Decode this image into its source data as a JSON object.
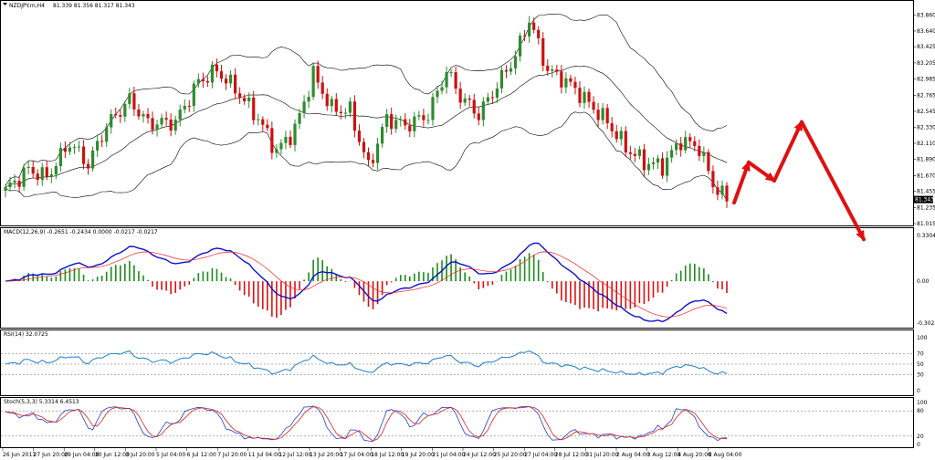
{
  "header": {
    "symbol": "NZDJPY.m,H4",
    "ohlc": "81.339 81.356 81.317 81.343"
  },
  "colors": {
    "bull": "#2e8b2e",
    "bear": "#cc1010",
    "band": "#000000",
    "macd_line": "#1010cc",
    "signal_line": "#ff2020",
    "hist_pos": "#1a8c1a",
    "hist_neg": "#dd1010",
    "rsi": "#1e7fd0",
    "stoch_main": "#2040d0",
    "stoch_signal": "#e02020",
    "arrow": "#e01010"
  },
  "price_panel": {
    "ylim": [
      81.015,
      84.0
    ],
    "ticks": [
      "83.860",
      "83.640",
      "83.425",
      "83.205",
      "82.985",
      "82.765",
      "82.545",
      "82.330",
      "82.110",
      "81.890",
      "81.670",
      "81.455",
      "81.235",
      "81.015"
    ],
    "last_price": "81.343"
  },
  "macd_panel": {
    "title": "MACD(12,26,9) -0.2651 -0.2434 0.0000 -0.0217 -0.0217",
    "ticks": [
      "0.3304",
      "0.00",
      "-0.3023"
    ],
    "ylim": [
      -0.3023,
      0.3304
    ]
  },
  "rsi_panel": {
    "title": "RSI(14) 32.0725",
    "ticks": [
      "100",
      "70",
      "50",
      "30",
      "0"
    ],
    "levels": [
      70,
      50,
      30
    ]
  },
  "stoch_panel": {
    "title": "Stoch(5,3,3) 5.3314 6.4513",
    "ticks": [
      "100",
      "80",
      "20",
      "0"
    ],
    "levels": [
      80,
      20
    ]
  },
  "x_axis": {
    "labels": [
      "26 Jun 2017",
      "27 Jun 20:00",
      "29 Jun 04:00",
      "30 Jun 12:00",
      "3 Jul 20:00",
      "5 Jul 04:00",
      "6 Jul 12:00",
      "7 Jul 20:00",
      "11 Jul 04:00",
      "12 Jul 12:00",
      "13 Jul 20:00",
      "17 Jul 04:00",
      "18 Jul 12:00",
      "19 Jul 20:00",
      "21 Jul 04:00",
      "24 Jul 12:00",
      "25 Jul 20:00",
      "27 Jul 04:00",
      "28 Jul 12:00",
      "31 Jul 20:00",
      "2 Aug 04:00",
      "3 Aug 12:00",
      "4 Aug 20:00",
      "8 Aug 04:00"
    ]
  },
  "chart_data": {
    "type": "candlestick",
    "anchors": [
      [
        0,
        81.47
      ],
      [
        5,
        81.75
      ],
      [
        9,
        81.65
      ],
      [
        14,
        82.12
      ],
      [
        18,
        81.82
      ],
      [
        22,
        82.35
      ],
      [
        27,
        82.7
      ],
      [
        31,
        82.38
      ],
      [
        37,
        82.4
      ],
      [
        42,
        82.95
      ],
      [
        46,
        83.1
      ],
      [
        50,
        82.85
      ],
      [
        55,
        82.45
      ],
      [
        59,
        82.0
      ],
      [
        63,
        82.3
      ],
      [
        67,
        83.05
      ],
      [
        71,
        82.58
      ],
      [
        75,
        82.55
      ],
      [
        79,
        81.78
      ],
      [
        83,
        82.45
      ],
      [
        87,
        82.35
      ],
      [
        92,
        82.5
      ],
      [
        96,
        83.1
      ],
      [
        99,
        82.75
      ],
      [
        103,
        82.5
      ],
      [
        107,
        82.9
      ],
      [
        111,
        83.3
      ],
      [
        114,
        83.8
      ],
      [
        116,
        83.45
      ],
      [
        118,
        83.1
      ],
      [
        121,
        83.0
      ],
      [
        124,
        82.85
      ],
      [
        127,
        82.65
      ],
      [
        131,
        82.4
      ],
      [
        135,
        82.05
      ],
      [
        139,
        81.85
      ],
      [
        143,
        81.8
      ],
      [
        147,
        82.15
      ],
      [
        151,
        82.05
      ],
      [
        154,
        81.55
      ],
      [
        157,
        81.34
      ]
    ],
    "candle_count": 158,
    "projection_arrows": [
      {
        "from_price": 81.3,
        "to_price": 81.85,
        "step": 0
      },
      {
        "from_price": 81.85,
        "to_price": 81.6,
        "step": 1
      },
      {
        "from_price": 81.6,
        "to_price": 82.4,
        "step": 2
      },
      {
        "from_price": 82.4,
        "to_price": 80.8,
        "step": 3
      }
    ]
  }
}
